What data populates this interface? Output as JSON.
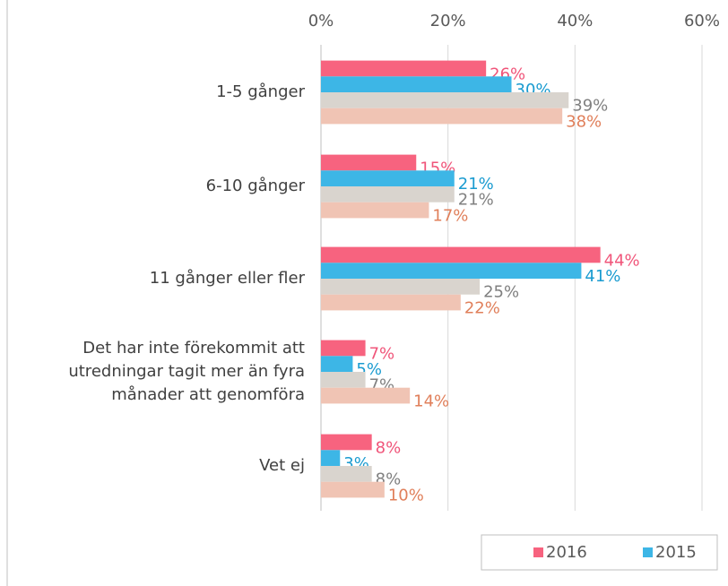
{
  "chart_data": {
    "type": "hbar",
    "categories": [
      "1-5 gånger",
      "6-10 gånger",
      "11 gånger eller fler",
      "Det har inte förekommit att\nutredningar tagit mer än fyra\nmånader att genomföra",
      "Vet ej"
    ],
    "series": [
      {
        "name": "2016",
        "color": "#f7637f",
        "label_color": "#f0557a",
        "values": [
          26,
          15,
          44,
          7,
          8
        ],
        "value_labels": [
          "26%",
          "15%",
          "44%",
          "7%",
          "8%"
        ]
      },
      {
        "name": "2015",
        "color": "#3db6e6",
        "label_color": "#1a9bd0",
        "values": [
          30,
          21,
          41,
          5,
          3
        ],
        "value_labels": [
          "30%",
          "21%",
          "41%",
          "5%",
          "3%"
        ]
      },
      {
        "color": "#d9d4ce",
        "label_color": "#808080",
        "values": [
          39,
          21,
          25,
          7,
          8
        ],
        "value_labels": [
          "39%",
          "21%",
          "25%",
          "7%",
          "8%"
        ]
      },
      {
        "color": "#f0c4b4",
        "label_color": "#e07f5a",
        "values": [
          38,
          17,
          22,
          14,
          10
        ],
        "value_labels": [
          "38%",
          "17%",
          "22%",
          "14%",
          "10%"
        ]
      }
    ],
    "xlim": [
      0,
      60
    ],
    "xticks": [
      {
        "value": 0,
        "label": "0%"
      },
      {
        "value": 20,
        "label": "20%"
      },
      {
        "value": 40,
        "label": "40%"
      },
      {
        "value": 60,
        "label": "60%"
      }
    ],
    "grid": true
  }
}
